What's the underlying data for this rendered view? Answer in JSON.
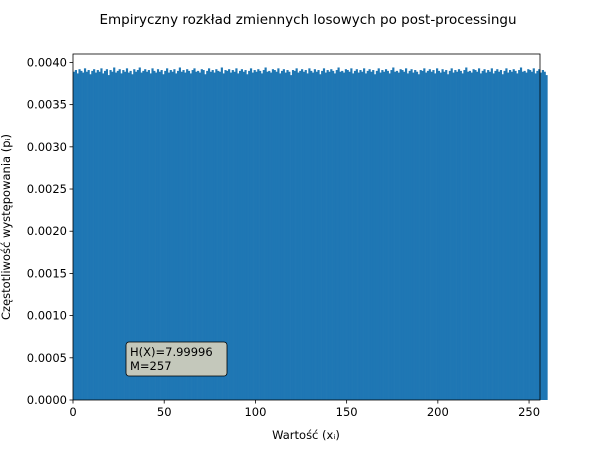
{
  "chart_data": {
    "type": "bar",
    "title": "Empiryczny rozkład zmiennych losowych po post-processingu",
    "xlabel": "Wartość (xᵢ)",
    "ylabel": "Częstotliwość występowania (pᵢ)",
    "xlim": [
      0,
      256
    ],
    "ylim": [
      0,
      0.0041
    ],
    "xticks": [
      0,
      50,
      100,
      150,
      200,
      250
    ],
    "xtick_labels": [
      "0",
      "50",
      "100",
      "150",
      "200",
      "250"
    ],
    "yticks": [
      0,
      0.0005,
      0.001,
      0.0015,
      0.002,
      0.0025,
      0.003,
      0.0035,
      0.004
    ],
    "ytick_labels": [
      "0.0000",
      "0.0005",
      "0.0010",
      "0.0015",
      "0.0020",
      "0.0025",
      "0.0030",
      "0.0035",
      "0.0040"
    ],
    "grid": false,
    "bar_color": "#1f77b4",
    "bins": 256,
    "bin_start": 0,
    "bin_width": 1,
    "values": [
      0.00389,
      0.00391,
      0.00387,
      0.00392,
      0.0039,
      0.00388,
      0.00393,
      0.00389,
      0.00391,
      0.00386,
      0.0039,
      0.00392,
      0.00388,
      0.00391,
      0.00389,
      0.00393,
      0.00387,
      0.0039,
      0.00392,
      0.00385,
      0.00391,
      0.00389,
      0.00394,
      0.00388,
      0.0039,
      0.00392,
      0.00387,
      0.00391,
      0.00389,
      0.00393,
      0.00388,
      0.0039,
      0.00386,
      0.00392,
      0.00389,
      0.00391,
      0.00394,
      0.00388,
      0.0039,
      0.00392,
      0.00389,
      0.00391,
      0.00387,
      0.00393,
      0.0039,
      0.00388,
      0.00392,
      0.00389,
      0.00391,
      0.00386,
      0.0039,
      0.00393,
      0.00388,
      0.00391,
      0.00389,
      0.00392,
      0.00387,
      0.0039,
      0.00394,
      0.00389,
      0.00391,
      0.00388,
      0.00392,
      0.0039,
      0.00387,
      0.00391,
      0.00393,
      0.00389,
      0.0039,
      0.00388,
      0.00392,
      0.00391,
      0.00386,
      0.0039,
      0.00393,
      0.00389,
      0.00391,
      0.00388,
      0.00392,
      0.0039,
      0.00389,
      0.00394,
      0.00387,
      0.00391,
      0.0039,
      0.00392,
      0.00388,
      0.00391,
      0.00389,
      0.00393,
      0.00387,
      0.0039,
      0.00392,
      0.00389,
      0.00391,
      0.00386,
      0.0039,
      0.00393,
      0.00388,
      0.00391,
      0.00389,
      0.00392,
      0.0039,
      0.00387,
      0.00391,
      0.00394,
      0.00389,
      0.0039,
      0.00388,
      0.00392,
      0.00391,
      0.00389,
      0.00393,
      0.00387,
      0.0039,
      0.00392,
      0.00388,
      0.00391,
      0.00389,
      0.00385,
      0.00391,
      0.0039,
      0.00393,
      0.00388,
      0.0039,
      0.00392,
      0.00389,
      0.00391,
      0.00387,
      0.00393,
      0.0039,
      0.00388,
      0.00392,
      0.00389,
      0.00391,
      0.00386,
      0.0039,
      0.00393,
      0.00388,
      0.00391,
      0.00389,
      0.00392,
      0.0039,
      0.00387,
      0.00391,
      0.00394,
      0.00389,
      0.0039,
      0.00388,
      0.00392,
      0.00391,
      0.00389,
      0.00393,
      0.00387,
      0.0039,
      0.00392,
      0.00388,
      0.00391,
      0.00389,
      0.00393,
      0.00387,
      0.0039,
      0.00392,
      0.00389,
      0.00391,
      0.00386,
      0.0039,
      0.00393,
      0.00388,
      0.00391,
      0.00389,
      0.00392,
      0.0039,
      0.00387,
      0.00391,
      0.00394,
      0.00389,
      0.0039,
      0.00388,
      0.00392,
      0.00391,
      0.00389,
      0.00393,
      0.00387,
      0.0039,
      0.00392,
      0.00388,
      0.00391,
      0.00389,
      0.00386,
      0.00391,
      0.0039,
      0.00393,
      0.00388,
      0.0039,
      0.00392,
      0.00389,
      0.00391,
      0.00387,
      0.00393,
      0.0039,
      0.00388,
      0.00392,
      0.00389,
      0.00391,
      0.00386,
      0.0039,
      0.00393,
      0.00388,
      0.00391,
      0.00389,
      0.00392,
      0.0039,
      0.00387,
      0.00391,
      0.00394,
      0.00389,
      0.0039,
      0.00388,
      0.00392,
      0.00391,
      0.00389,
      0.00393,
      0.00387,
      0.0039,
      0.00392,
      0.00388,
      0.00391,
      0.00389,
      0.00393,
      0.00387,
      0.0039,
      0.00392,
      0.00389,
      0.00391,
      0.00386,
      0.0039,
      0.00393,
      0.00388,
      0.00391,
      0.00389,
      0.00392,
      0.0039,
      0.00387,
      0.00391,
      0.00394,
      0.00389,
      0.0039,
      0.00388,
      0.00392,
      0.00391,
      0.00389,
      0.00393,
      0.00387,
      0.0039,
      0.00392,
      0.00388,
      0.00391,
      0.00389,
      0.00385
    ],
    "annotation": {
      "lines": [
        "H(X)=7.99996",
        "M=257"
      ],
      "box_color": "#c4c8bb",
      "placement": "lower-left"
    }
  }
}
